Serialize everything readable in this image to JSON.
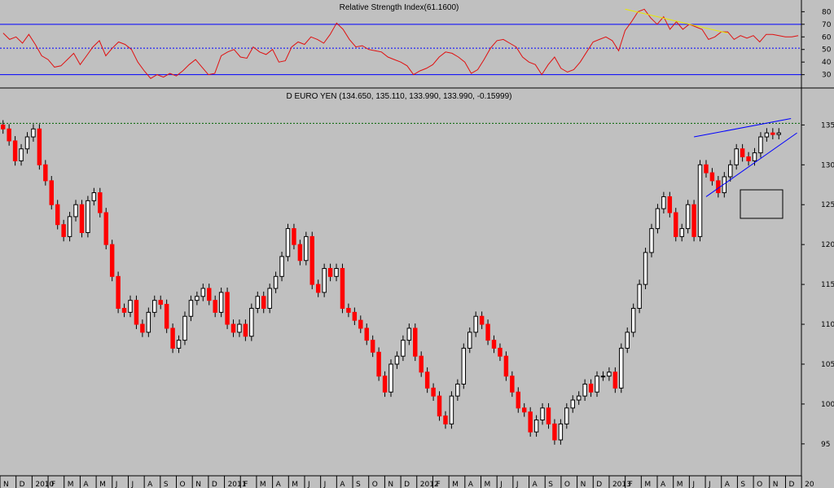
{
  "chart_data": [
    {
      "type": "line",
      "title": "Relative Strength Index(61.1600)",
      "ylim": [
        22,
        88
      ],
      "yticks": [
        30,
        40,
        50,
        60,
        70,
        80
      ],
      "reference_lines": [
        {
          "value": 70,
          "style": "solid",
          "color": "#0000ff"
        },
        {
          "value": 51,
          "style": "dotted",
          "color": "#0000ff"
        },
        {
          "value": 30,
          "style": "solid",
          "color": "#0000ff"
        }
      ],
      "series": [
        {
          "color": "#e01010",
          "values": [
            63,
            58,
            60,
            55,
            62,
            54,
            45,
            42,
            36,
            37,
            42,
            47,
            38,
            45,
            52,
            57,
            45,
            51,
            56,
            54,
            50,
            40,
            33,
            27,
            30,
            28,
            31,
            29,
            33,
            38,
            42,
            36,
            30,
            31,
            45,
            48,
            50,
            44,
            43,
            52,
            48,
            46,
            50,
            40,
            41,
            52,
            56,
            54,
            60,
            58,
            55,
            62,
            71,
            66,
            58,
            52,
            53,
            50,
            49,
            48,
            44,
            42,
            40,
            37,
            30,
            33,
            35,
            38,
            44,
            48,
            47,
            44,
            40,
            31,
            34,
            42,
            51,
            57,
            58,
            55,
            52,
            44,
            40,
            38,
            30,
            38,
            44,
            35,
            32,
            34,
            40,
            48,
            56,
            58,
            60,
            57,
            49,
            65,
            72,
            80,
            82,
            75,
            70,
            76,
            66,
            72,
            66,
            70,
            68,
            66,
            58,
            60,
            64,
            64,
            58,
            61,
            59,
            61,
            56,
            62,
            62,
            61,
            60,
            60,
            61
          ],
          "annotations": [
            {
              "type": "trendline",
              "color": "#e8e800",
              "points": [
                [
                  97,
                  82
                ],
                [
                  113,
                  63
                ]
              ]
            }
          ]
        }
      ]
    },
    {
      "type": "candlestick",
      "title": "D EURO YEN (134.650, 135.110, 133.990, 133.990, -0.15999)",
      "ylim": [
        91,
        138
      ],
      "yticks": [
        95,
        100,
        105,
        110,
        115,
        120,
        125,
        130,
        135
      ],
      "x_labels": [
        "N",
        "D",
        "2010",
        "F",
        "M",
        "A",
        "M",
        "J",
        "J",
        "A",
        "S",
        "O",
        "N",
        "D",
        "2011",
        "F",
        "M",
        "A",
        "M",
        "J",
        "J",
        "A",
        "S",
        "O",
        "N",
        "D",
        "2012",
        "F",
        "M",
        "A",
        "M",
        "J",
        "J",
        "A",
        "S",
        "O",
        "N",
        "D",
        "2013",
        "F",
        "M",
        "A",
        "M",
        "J",
        "J",
        "A",
        "S",
        "O",
        "N",
        "D",
        "20"
      ],
      "closes": [
        134.5,
        133,
        130.5,
        132,
        133.5,
        134.5,
        130,
        128,
        125,
        122.5,
        121,
        123.5,
        125,
        121.5,
        125.5,
        126.5,
        124,
        120,
        116,
        112,
        111.5,
        113,
        110,
        109,
        111.5,
        113,
        112.5,
        109.5,
        107,
        108,
        111,
        113,
        113.5,
        114.5,
        113,
        111.5,
        114,
        110,
        109,
        110,
        108.5,
        112,
        113.5,
        112,
        114.5,
        116,
        118.5,
        122,
        120,
        118,
        121,
        115,
        114,
        117,
        116,
        117,
        112,
        111.5,
        110.5,
        109.5,
        108,
        106.5,
        103.5,
        101.5,
        105,
        106,
        108,
        109.5,
        106,
        104,
        102,
        101,
        98.5,
        97.5,
        101,
        102.5,
        107,
        109,
        111,
        110,
        108,
        107,
        106,
        103.5,
        101.5,
        99.5,
        99,
        96.5,
        98,
        99.5,
        97.5,
        95.5,
        97.5,
        99.5,
        100.5,
        101,
        102.5,
        101.5,
        103.5,
        103.5,
        104,
        102,
        107,
        109,
        112,
        115,
        119,
        122,
        124.5,
        126,
        124,
        121,
        122,
        125,
        121,
        130,
        129,
        128,
        126.5,
        128.5,
        130,
        132,
        131,
        130.5,
        131.5,
        133.5,
        134,
        133.8,
        134
      ],
      "bullish_color": "#ffffff",
      "bearish_color": "#ff0000",
      "reference_lines": [
        {
          "value": 135.2,
          "style": "dotted",
          "color": "#006400"
        }
      ],
      "annotations": [
        {
          "type": "trendline",
          "color": "#0000ff",
          "points": [
            [
              114,
              133.5
            ],
            [
              130,
              135.8
            ]
          ]
        },
        {
          "type": "trendline",
          "color": "#0000ff",
          "points": [
            [
              116,
              126
            ],
            [
              131,
              134
            ]
          ]
        }
      ]
    }
  ]
}
